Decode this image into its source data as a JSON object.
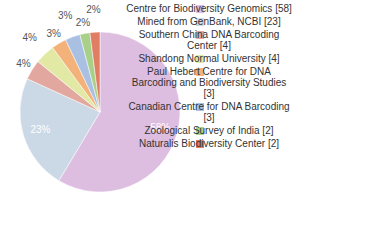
{
  "chart_data": {
    "type": "pie",
    "categories": [
      "Centre for Biodiversity Genomics [58]",
      "Mined from GenBank, NCBI [23]",
      "Southern China DNA Barcoding Center [4]",
      "Shandong Normal University [4]",
      "Paul Hebert Centre for DNA Barcoding and Biodiversity Studies [3]",
      "Canadian Centre for DNA Barcoding [3]",
      "Zoological Survey of India [2]",
      "Naturalis Biodiversity Center [2]"
    ],
    "values": [
      58,
      23,
      4,
      4,
      3,
      3,
      2,
      2
    ],
    "value_labels": [
      "58%",
      "23%",
      "4%",
      "4%",
      "3%",
      "3%",
      "2%",
      "2%"
    ],
    "colors": [
      "#ddbde0",
      "#cbd8e6",
      "#e2a79e",
      "#e1e9a4",
      "#f2b27a",
      "#a9c0e2",
      "#a8d088",
      "#e07d62"
    ],
    "data_labels": true,
    "legend": "right"
  }
}
